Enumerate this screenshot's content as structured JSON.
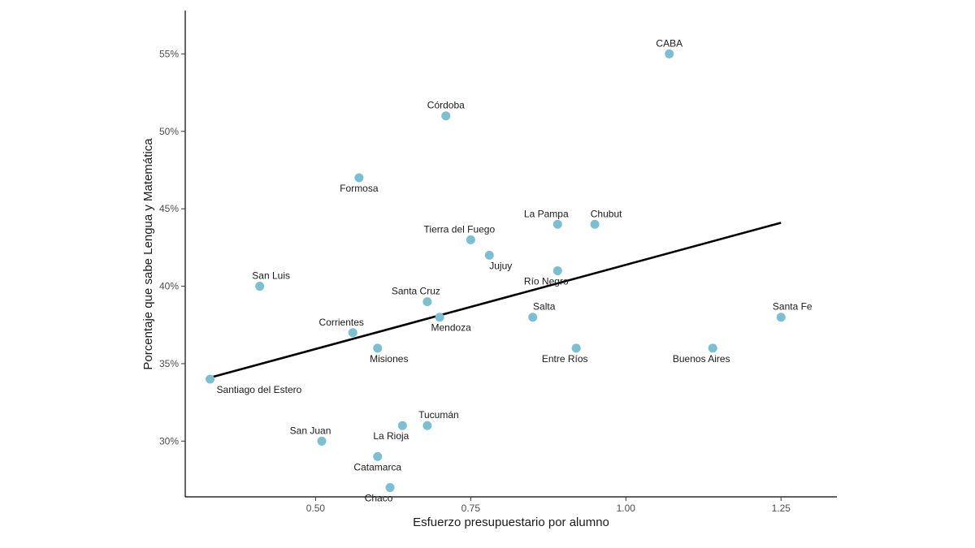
{
  "chart_data": {
    "type": "scatter",
    "title": "",
    "xlabel": "Esfuerzo presupuestario por alumno",
    "ylabel": "Porcentaje que sabe Lengua y Matemática",
    "xlim": [
      0.29,
      1.34
    ],
    "ylim": [
      26.4,
      57.8
    ],
    "x_ticks": [
      0.5,
      0.75,
      1.0,
      1.25
    ],
    "x_tick_labels": [
      "0.50",
      "0.75",
      "1.00",
      "1.25"
    ],
    "y_ticks": [
      30,
      35,
      40,
      45,
      50,
      55
    ],
    "y_tick_labels": [
      "30%",
      "35%",
      "40%",
      "45%",
      "50%",
      "55%"
    ],
    "grid": false,
    "point_color": "#7bbfd4",
    "line_color": "#000000",
    "trend_line": {
      "x": [
        0.33,
        1.25
      ],
      "y": [
        34.1,
        44.1
      ]
    },
    "points": [
      {
        "label": "CABA",
        "x": 1.07,
        "y": 55,
        "label_pos": "above"
      },
      {
        "label": "Córdoba",
        "x": 0.71,
        "y": 51,
        "label_pos": "above"
      },
      {
        "label": "Formosa",
        "x": 0.57,
        "y": 47,
        "label_pos": "below"
      },
      {
        "label": "La Pampa",
        "x": 0.89,
        "y": 44,
        "label_pos": "above-left"
      },
      {
        "label": "Chubut",
        "x": 0.95,
        "y": 44,
        "label_pos": "above-right"
      },
      {
        "label": "Tierra del Fuego",
        "x": 0.75,
        "y": 43,
        "label_pos": "above-left"
      },
      {
        "label": "Jujuy",
        "x": 0.78,
        "y": 42,
        "label_pos": "below-right"
      },
      {
        "label": "Río Negro",
        "x": 0.89,
        "y": 41,
        "label_pos": "below-left"
      },
      {
        "label": "San Luis",
        "x": 0.41,
        "y": 40,
        "label_pos": "above-right"
      },
      {
        "label": "Santa Cruz",
        "x": 0.68,
        "y": 39,
        "label_pos": "above-left"
      },
      {
        "label": "Mendoza",
        "x": 0.7,
        "y": 38,
        "label_pos": "below-right"
      },
      {
        "label": "Salta",
        "x": 0.85,
        "y": 38,
        "label_pos": "above-right"
      },
      {
        "label": "Santa Fe",
        "x": 1.25,
        "y": 38,
        "label_pos": "above-right"
      },
      {
        "label": "Corrientes",
        "x": 0.56,
        "y": 37,
        "label_pos": "above-left"
      },
      {
        "label": "Misiones",
        "x": 0.6,
        "y": 36,
        "label_pos": "below-right"
      },
      {
        "label": "Entre Ríos",
        "x": 0.92,
        "y": 36,
        "label_pos": "below-left"
      },
      {
        "label": "Buenos Aires",
        "x": 1.14,
        "y": 36,
        "label_pos": "below-left"
      },
      {
        "label": "Santiago del Estero",
        "x": 0.33,
        "y": 34,
        "label_pos": "below-right"
      },
      {
        "label": "Tucumán",
        "x": 0.68,
        "y": 31,
        "label_pos": "above-right"
      },
      {
        "label": "La Rioja",
        "x": 0.64,
        "y": 31,
        "label_pos": "below-left"
      },
      {
        "label": "San Juan",
        "x": 0.51,
        "y": 30,
        "label_pos": "above-left"
      },
      {
        "label": "Catamarca",
        "x": 0.6,
        "y": 29,
        "label_pos": "below"
      },
      {
        "label": "Chaco",
        "x": 0.62,
        "y": 27,
        "label_pos": "below-left"
      }
    ]
  }
}
